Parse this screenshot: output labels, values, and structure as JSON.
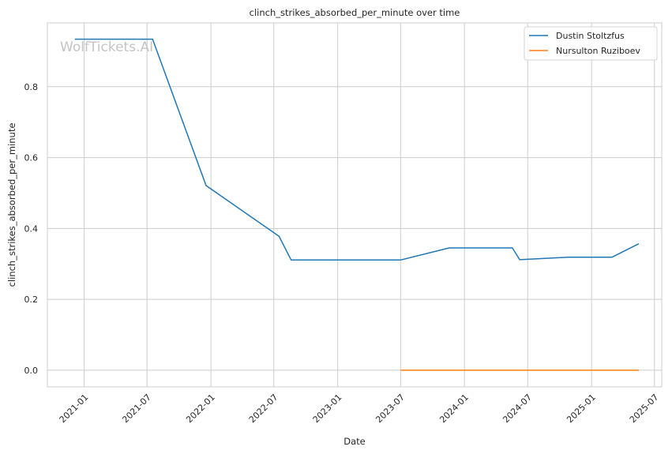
{
  "chart_data": {
    "type": "line",
    "title": "clinch_strikes_absorbed_per_minute over time",
    "xlabel": "Date",
    "ylabel": "clinch_strikes_absorbed_per_minute",
    "watermark": "WolfTickets.AI",
    "x_ticks": [
      "2021-01",
      "2021-07",
      "2022-01",
      "2022-07",
      "2023-01",
      "2023-07",
      "2024-01",
      "2024-07",
      "2025-01",
      "2025-07"
    ],
    "y_ticks": [
      0.0,
      0.2,
      0.4,
      0.6,
      0.8
    ],
    "y_tick_labels": [
      "0.0",
      "0.2",
      "0.4",
      "0.6",
      "0.8"
    ],
    "xlim": [
      "2020-09-17",
      "2025-07-22"
    ],
    "ylim": [
      -0.047,
      0.98
    ],
    "grid": true,
    "legend_position": "top-right",
    "series": [
      {
        "name": "Dustin Stoltzfus",
        "color": "#1f77b4",
        "points": [
          [
            "2020-12-05",
            0.934
          ],
          [
            "2021-07-17",
            0.934
          ],
          [
            "2021-12-18",
            0.521
          ],
          [
            "2022-07-16",
            0.378
          ],
          [
            "2022-08-20",
            0.311
          ],
          [
            "2023-07-01",
            0.311
          ],
          [
            "2023-11-18",
            0.345
          ],
          [
            "2024-05-18",
            0.345
          ],
          [
            "2024-06-08",
            0.312
          ],
          [
            "2024-10-26",
            0.319
          ],
          [
            "2025-03-01",
            0.319
          ],
          [
            "2025-05-17",
            0.357
          ]
        ]
      },
      {
        "name": "Nursulton Ruziboev",
        "color": "#ff7f0e",
        "points": [
          [
            "2023-07-01",
            0.0
          ],
          [
            "2025-05-17",
            0.0
          ]
        ]
      }
    ]
  }
}
